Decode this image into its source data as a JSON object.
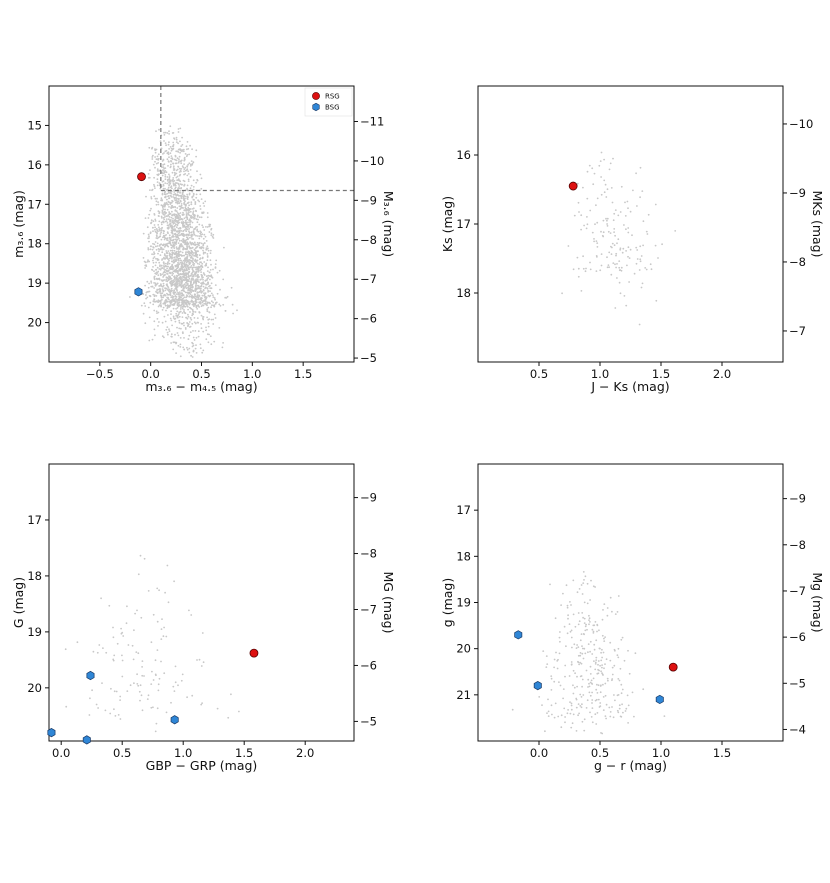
{
  "colors": {
    "rsg": "#dd1111",
    "bsg": "#2f86d6",
    "field": "#c8c8c8",
    "axis": "#111111",
    "dash": "#777777"
  },
  "legend": {
    "items": [
      {
        "label": "RSG",
        "color": "#dd1111",
        "shape": "circle"
      },
      {
        "label": "BSG",
        "color": "#2f86d6",
        "shape": "hexagon"
      }
    ]
  },
  "chart_data": [
    {
      "type": "scatter",
      "xlabel": "m₃.₆ − m₄.₅ (mag)",
      "ylabel": "m₃.₆ (mag)",
      "y2label": "M₃.₆ (mag)",
      "xlim": [
        -1.0,
        2.0
      ],
      "ylim": [
        21.0,
        14.0
      ],
      "xticks": [
        "−0.5",
        "0.0",
        "0.5",
        "1.0",
        "1.5"
      ],
      "xtickvals": [
        -0.5,
        0.0,
        0.5,
        1.0,
        1.5
      ],
      "yticks": [
        "15",
        "16",
        "17",
        "18",
        "19",
        "20"
      ],
      "ytickvals": [
        15,
        16,
        17,
        18,
        19,
        20
      ],
      "y2ticks": [
        "−11",
        "−10",
        "−9",
        "−8",
        "−7",
        "−6",
        "−5"
      ],
      "y2tickvals": [
        -11,
        -10,
        -9,
        -8,
        -7,
        -6,
        -5
      ],
      "y2offset": 25.9,
      "legend": "top-right",
      "cutoff": {
        "x": 0.1,
        "y": 16.65
      },
      "field": {
        "count": 2600,
        "xcenter": 0.2,
        "xspread": 0.3,
        "ymin": 15.0,
        "ymax": 20.95,
        "peak": 19.6
      },
      "rsg": [
        {
          "x": -0.09,
          "y": 16.3
        }
      ],
      "bsg": [
        {
          "x": -0.12,
          "y": 19.22
        }
      ]
    },
    {
      "type": "scatter",
      "xlabel": "J − Ks (mag)",
      "ylabel": "Ks (mag)",
      "y2label": "MKs (mag)",
      "xlim": [
        0.0,
        2.5
      ],
      "ylim": [
        19.0,
        15.0
      ],
      "xticks": [
        "0.5",
        "1.0",
        "1.5",
        "2.0"
      ],
      "xtickvals": [
        0.5,
        1.0,
        1.5,
        2.0
      ],
      "yticks": [
        "16",
        "17",
        "18"
      ],
      "ytickvals": [
        16,
        17,
        18
      ],
      "y2ticks": [
        "−10",
        "−9",
        "−8",
        "−7"
      ],
      "y2tickvals": [
        -10,
        -9,
        -8,
        -7
      ],
      "y2offset": 25.55,
      "field": {
        "count": 170,
        "xcenter": 1.1,
        "xspread": 0.35,
        "ymin": 15.8,
        "ymax": 18.6,
        "peak": 17.7
      },
      "rsg": [
        {
          "x": 0.78,
          "y": 16.45
        }
      ],
      "bsg": []
    },
    {
      "type": "scatter",
      "xlabel": "GBP − GRP (mag)",
      "ylabel": "G (mag)",
      "y2label": "MG (mag)",
      "xlim": [
        -0.1,
        2.4
      ],
      "ylim": [
        20.95,
        16.0
      ],
      "xticks": [
        "0.0",
        "0.5",
        "1.0",
        "1.5",
        "2.0"
      ],
      "xtickvals": [
        0.0,
        0.5,
        1.0,
        1.5,
        2.0
      ],
      "yticks": [
        "17",
        "18",
        "19",
        "20"
      ],
      "ytickvals": [
        17,
        18,
        19,
        20
      ],
      "y2ticks": [
        "−9",
        "−8",
        "−7",
        "−6",
        "−5"
      ],
      "y2tickvals": [
        -9,
        -8,
        -7,
        -6,
        -5
      ],
      "y2offset": 25.6,
      "field": {
        "count": 130,
        "xcenter": 0.6,
        "xspread": 0.5,
        "ymin": 17.4,
        "ymax": 20.95,
        "peak": 20.6
      },
      "rsg": [
        {
          "x": 1.58,
          "y": 19.38
        }
      ],
      "bsg": [
        {
          "x": 0.24,
          "y": 19.78
        },
        {
          "x": -0.08,
          "y": 20.8
        },
        {
          "x": 0.21,
          "y": 20.93
        },
        {
          "x": 0.93,
          "y": 20.57
        }
      ]
    },
    {
      "type": "scatter",
      "xlabel": "g − r (mag)",
      "ylabel": "g (mag)",
      "y2label": "Mg (mag)",
      "xlim": [
        -0.5,
        2.0
      ],
      "ylim": [
        22.0,
        16.0
      ],
      "xticks": [
        "0.0",
        "0.5",
        "1.0",
        "1.5"
      ],
      "xtickvals": [
        0.0,
        0.5,
        1.0,
        1.5
      ],
      "yticks": [
        "17",
        "18",
        "19",
        "20",
        "21"
      ],
      "ytickvals": [
        17,
        18,
        19,
        20,
        21
      ],
      "y2ticks": [
        "−9",
        "−8",
        "−7",
        "−6",
        "−5",
        "−4"
      ],
      "y2tickvals": [
        -9,
        -8,
        -7,
        -6,
        -5,
        -4
      ],
      "y2offset": 25.75,
      "field": {
        "count": 320,
        "xcenter": 0.35,
        "xspread": 0.35,
        "ymin": 18.2,
        "ymax": 22.0,
        "peak": 21.5
      },
      "rsg": [
        {
          "x": 1.1,
          "y": 20.4
        }
      ],
      "bsg": [
        {
          "x": -0.17,
          "y": 19.7
        },
        {
          "x": -0.01,
          "y": 20.8
        },
        {
          "x": 0.99,
          "y": 21.1
        }
      ]
    }
  ]
}
